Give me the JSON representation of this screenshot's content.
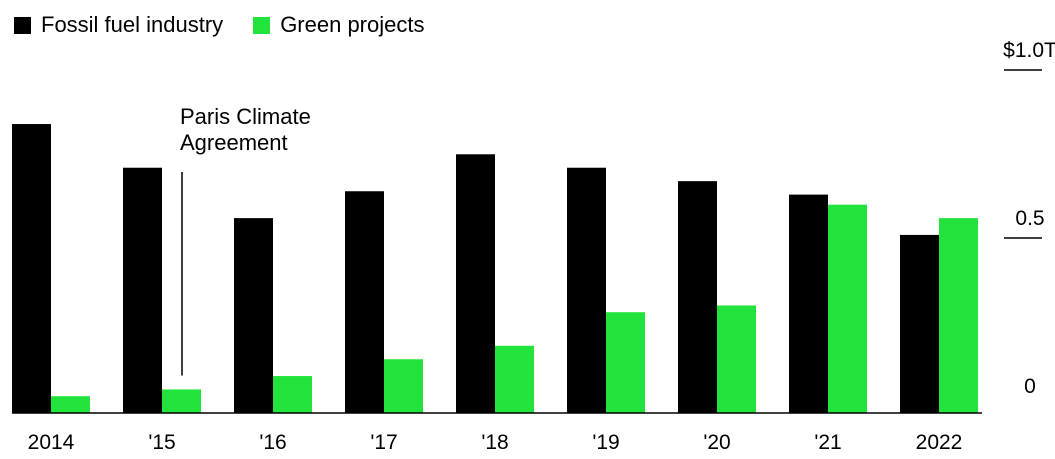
{
  "colors": {
    "fossil": "#000000",
    "green": "#22e33b",
    "axis": "#000000"
  },
  "legend": [
    {
      "label": "Fossil fuel industry",
      "color": "#000000"
    },
    {
      "label": "Green projects",
      "color": "#22e33b"
    }
  ],
  "chart_data": {
    "type": "bar",
    "categories": [
      "2014",
      "'15",
      "'16",
      "'17",
      "'18",
      "'19",
      "'20",
      "'21",
      "2022"
    ],
    "series": [
      {
        "name": "Fossil fuel industry",
        "values": [
          0.86,
          0.73,
          0.58,
          0.66,
          0.77,
          0.73,
          0.69,
          0.65,
          0.53
        ]
      },
      {
        "name": "Green projects",
        "values": [
          0.05,
          0.07,
          0.11,
          0.16,
          0.2,
          0.3,
          0.32,
          0.62,
          0.58
        ]
      }
    ],
    "ylim": [
      0,
      1.0
    ],
    "yticks": [
      {
        "value": 0,
        "label": "0"
      },
      {
        "value": 0.5,
        "label": "0.5"
      },
      {
        "value": 1.0,
        "label": "$1.0T"
      }
    ],
    "annotations": [
      {
        "category": "'15",
        "lines": [
          "Paris Climate",
          "Agreement"
        ]
      }
    ],
    "legend_position": "top-left",
    "grid": false
  }
}
